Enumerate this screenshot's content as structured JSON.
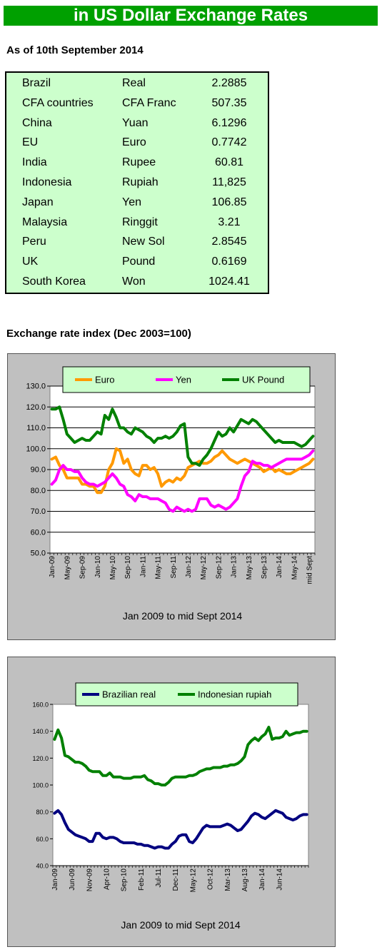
{
  "header": {
    "title": "in US Dollar Exchange Rates",
    "as_of": "As of 10th September 2014"
  },
  "rates": [
    {
      "country": "Brazil",
      "currency": "Real",
      "value": "2.2885"
    },
    {
      "country": "CFA countries",
      "currency": "CFA Franc",
      "value": "507.35"
    },
    {
      "country": "China",
      "currency": "Yuan",
      "value": "6.1296"
    },
    {
      "country": "EU",
      "currency": "Euro",
      "value": "0.7742"
    },
    {
      "country": "India",
      "currency": "Rupee",
      "value": "60.81"
    },
    {
      "country": "Indonesia",
      "currency": "Rupiah",
      "value": "11,825"
    },
    {
      "country": "Japan",
      "currency": "Yen",
      "value": "106.85"
    },
    {
      "country": "Malaysia",
      "currency": "Ringgit",
      "value": "3.21"
    },
    {
      "country": "Peru",
      "currency": "New Sol",
      "value": "2.8545"
    },
    {
      "country": "UK",
      "currency": "Pound",
      "value": "0.6169"
    },
    {
      "country": "South Korea",
      "currency": "Won",
      "value": "1024.41"
    }
  ],
  "index_heading": "Exchange rate index (Dec 2003=100)",
  "chart_data": [
    {
      "type": "line",
      "title": "",
      "xlabel": "Jan 2009 to mid Sept 2014",
      "ylabel": "",
      "ylim": [
        50,
        130
      ],
      "yticks": [
        50,
        60,
        70,
        80,
        90,
        100,
        110,
        120,
        130
      ],
      "ytick_labels": [
        "50.0",
        "60.0",
        "70.0",
        "80.0",
        "90.0",
        "100.0",
        "110.0",
        "120.0",
        "130.0"
      ],
      "x_tick_labels": [
        {
          "i": 0,
          "label": "Jan-09"
        },
        {
          "i": 4,
          "label": "May-09"
        },
        {
          "i": 8,
          "label": "Sep-09"
        },
        {
          "i": 12,
          "label": "Jan-10"
        },
        {
          "i": 16,
          "label": "May-10"
        },
        {
          "i": 20,
          "label": "Sep-10"
        },
        {
          "i": 24,
          "label": "Jan-11"
        },
        {
          "i": 28,
          "label": "May-11"
        },
        {
          "i": 32,
          "label": "Sep-11"
        },
        {
          "i": 36,
          "label": "Jan-12"
        },
        {
          "i": 40,
          "label": "May-12"
        },
        {
          "i": 44,
          "label": "Sep-12"
        },
        {
          "i": 48,
          "label": "Jan-13"
        },
        {
          "i": 52,
          "label": "May-13"
        },
        {
          "i": 56,
          "label": "Sep-13"
        },
        {
          "i": 60,
          "label": "Jan-14"
        },
        {
          "i": 64,
          "label": "May-14"
        },
        {
          "i": 68,
          "label": "mid Sept"
        }
      ],
      "grid": true,
      "legend": "top",
      "series": [
        {
          "name": "Euro",
          "color": "#ff9900",
          "values": [
            95,
            96,
            92,
            90,
            86,
            86,
            86,
            86,
            83,
            83,
            82,
            82,
            79,
            79,
            82,
            90,
            93,
            100,
            99,
            93,
            95,
            90,
            88,
            87,
            92,
            92,
            90,
            91,
            88,
            82,
            84,
            85,
            84,
            86,
            85,
            87,
            91,
            92,
            93,
            94,
            93,
            93,
            94,
            96,
            97,
            99,
            97,
            95,
            94,
            93,
            94,
            95,
            94,
            93,
            92,
            91,
            89,
            90,
            91,
            89,
            90,
            89,
            88,
            88,
            89,
            90,
            91,
            92,
            93,
            95
          ]
        },
        {
          "name": "Yen",
          "color": "#ff00ff",
          "values": [
            83,
            85,
            90,
            92,
            90,
            90,
            89,
            89,
            86,
            84,
            83,
            83,
            82,
            83,
            84,
            86,
            88,
            86,
            83,
            82,
            78,
            77,
            75,
            78,
            77,
            77,
            76,
            76,
            76,
            75,
            74,
            71,
            70,
            72,
            71,
            70,
            71,
            70,
            71,
            76,
            76,
            76,
            73,
            72,
            73,
            72,
            71,
            72,
            74,
            76,
            82,
            87,
            89,
            94,
            93,
            93,
            92,
            92,
            91,
            92,
            93,
            94,
            95,
            95,
            95,
            95,
            95,
            96,
            97,
            99
          ]
        },
        {
          "name": "UK Pound",
          "color": "#008000",
          "values": [
            119,
            119,
            120,
            114,
            107,
            105,
            103,
            104,
            105,
            104,
            104,
            106,
            108,
            107,
            116,
            114,
            119,
            115,
            110,
            110,
            108,
            107,
            110,
            109,
            108,
            106,
            105,
            103,
            105,
            105,
            106,
            105,
            106,
            108,
            111,
            112,
            96,
            93,
            93,
            92,
            95,
            97,
            100,
            104,
            108,
            106,
            107,
            110,
            108,
            111,
            114,
            113,
            112,
            114,
            113,
            111,
            109,
            107,
            105,
            103,
            104,
            103,
            103,
            103,
            103,
            102,
            101,
            102,
            104,
            106
          ]
        }
      ]
    },
    {
      "type": "line",
      "title": "",
      "xlabel": "Jan 2009 to mid Sept 2014",
      "ylabel": "",
      "ylim": [
        40,
        160
      ],
      "yticks": [
        40,
        60,
        80,
        100,
        120,
        140,
        160
      ],
      "ytick_labels": [
        "40.0",
        "60.0",
        "80.0",
        "100.0",
        "120.0",
        "140.0",
        "160.0"
      ],
      "x_tick_labels": [
        {
          "i": 0,
          "label": "Jan-09"
        },
        {
          "i": 5,
          "label": "Jun-09"
        },
        {
          "i": 10,
          "label": "Nov-09"
        },
        {
          "i": 15,
          "label": "Apr-10"
        },
        {
          "i": 20,
          "label": "Sep-10"
        },
        {
          "i": 25,
          "label": "Feb-11"
        },
        {
          "i": 30,
          "label": "Jul-11"
        },
        {
          "i": 35,
          "label": "Dec-11"
        },
        {
          "i": 40,
          "label": "May-12"
        },
        {
          "i": 45,
          "label": "Oct-12"
        },
        {
          "i": 50,
          "label": "Mar-13"
        },
        {
          "i": 55,
          "label": "Aug-13"
        },
        {
          "i": 60,
          "label": "Jan-14"
        },
        {
          "i": 65,
          "label": "Jun-14"
        }
      ],
      "grid": false,
      "legend": "top",
      "series": [
        {
          "name": "Brazilian real",
          "color": "#000080",
          "values": [
            79,
            81,
            78,
            72,
            67,
            65,
            63,
            62,
            61,
            60,
            58,
            58,
            64,
            64,
            61,
            60,
            61,
            61,
            60,
            58,
            57,
            57,
            57,
            57,
            56,
            56,
            55,
            55,
            54,
            53,
            54,
            54,
            53,
            53,
            56,
            58,
            62,
            63,
            63,
            58,
            57,
            60,
            64,
            68,
            70,
            69,
            69,
            69,
            69,
            70,
            71,
            70,
            68,
            66,
            67,
            70,
            73,
            77,
            79,
            78,
            76,
            75,
            77,
            79,
            81,
            80,
            79,
            76,
            75,
            74,
            75,
            77,
            78,
            78
          ]
        },
        {
          "name": "Indonesian rupiah",
          "color": "#008000",
          "values": [
            134,
            141,
            135,
            122,
            121,
            119,
            117,
            117,
            116,
            114,
            111,
            110,
            110,
            110,
            107,
            107,
            109,
            106,
            106,
            106,
            105,
            105,
            105,
            106,
            106,
            106,
            107,
            104,
            103,
            101,
            101,
            100,
            100,
            102,
            105,
            106,
            106,
            106,
            106,
            107,
            107,
            108,
            110,
            111,
            112,
            112,
            113,
            113,
            113,
            114,
            114,
            115,
            115,
            116,
            118,
            121,
            130,
            133,
            135,
            133,
            136,
            138,
            143,
            134,
            135,
            135,
            136,
            140,
            137,
            138,
            139,
            139,
            140,
            140
          ]
        }
      ]
    }
  ]
}
